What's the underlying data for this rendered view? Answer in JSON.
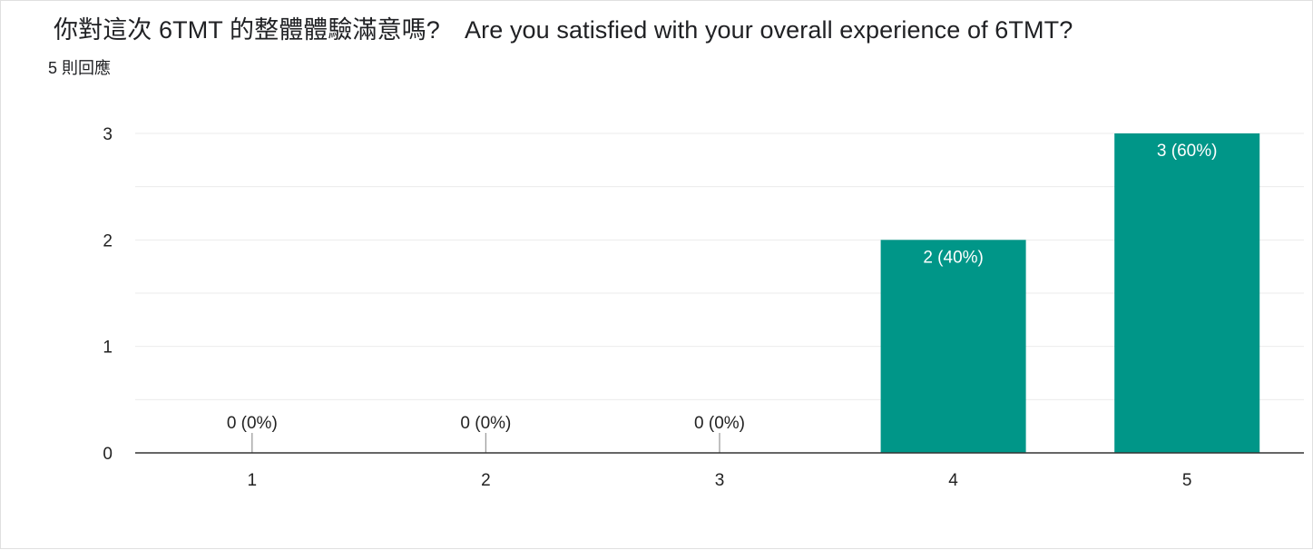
{
  "question": {
    "title": "你對這次 6TMT 的整體體驗滿意嗎?　Are you satisfied with your overall experience of 6TMT?",
    "response_count": "5 則回應"
  },
  "colors": {
    "bar": "#009688",
    "grid": "#ebebeb",
    "axis": "#333333",
    "label_inside": "#ffffff",
    "label_outside": "#222222"
  },
  "chart_data": {
    "type": "bar",
    "categories": [
      "1",
      "2",
      "3",
      "4",
      "5"
    ],
    "values": [
      0,
      0,
      0,
      2,
      3
    ],
    "data_labels": [
      "0 (0%)",
      "0 (0%)",
      "0 (0%)",
      "2 (40%)",
      "3 (60%)"
    ],
    "yticks": [
      0,
      1,
      2,
      3
    ],
    "ylim": [
      0,
      3
    ],
    "grid": true,
    "legend": "none"
  }
}
